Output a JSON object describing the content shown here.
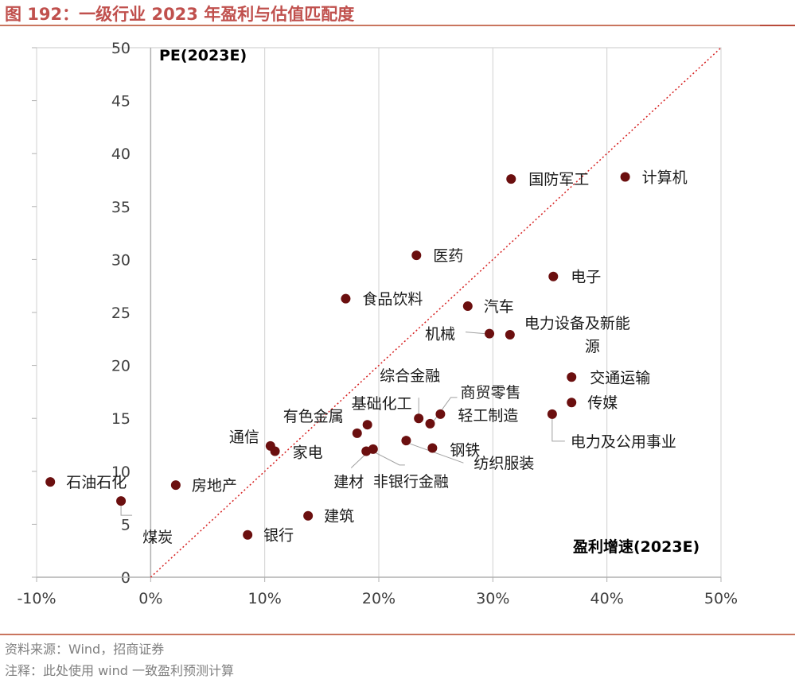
{
  "figure": {
    "title": "图 192：一级行业 2023 年盈利与估值匹配度",
    "source": "资料来源：Wind，招商证券",
    "note": "注释：此处使用 wind 一致盈利预测计算"
  },
  "colors": {
    "title": "#c0504d",
    "point": "#6b0f0f",
    "diagonal": "#d62020",
    "axis": "#b0b0b0",
    "text": "#404040"
  },
  "chart_data": {
    "type": "scatter",
    "title": "",
    "ylabel": "PE(2023E)",
    "xlabel": "盈利增速(2023E)",
    "xlim": [
      -0.1,
      0.5
    ],
    "ylim": [
      0,
      50
    ],
    "x_ticks": [
      -0.1,
      0,
      0.1,
      0.2,
      0.3,
      0.4,
      0.5
    ],
    "x_tick_labels": [
      "-10%",
      "0%",
      "10%",
      "20%",
      "30%",
      "40%",
      "50%"
    ],
    "y_ticks": [
      0,
      5,
      10,
      15,
      20,
      25,
      30,
      35,
      40,
      45,
      50
    ],
    "y_tick_labels": [
      "0",
      "5",
      "10",
      "15",
      "20",
      "25",
      "30",
      "35",
      "40",
      "45",
      "50"
    ],
    "reference_line": {
      "from": [
        0,
        0
      ],
      "to": [
        0.5,
        50
      ],
      "style": "dotted"
    },
    "points": [
      {
        "name": "石油石化",
        "x": -0.088,
        "y": 9.0
      },
      {
        "name": "煤炭",
        "x": -0.026,
        "y": 7.2
      },
      {
        "name": "房地产",
        "x": 0.022,
        "y": 8.7
      },
      {
        "name": "银行",
        "x": 0.085,
        "y": 4.0
      },
      {
        "name": "建筑",
        "x": 0.138,
        "y": 5.8
      },
      {
        "name": "通信",
        "x": 0.105,
        "y": 12.4
      },
      {
        "name": "家电",
        "x": 0.109,
        "y": 11.9
      },
      {
        "name": "有色金属",
        "x": 0.181,
        "y": 13.6
      },
      {
        "name": "基础化工",
        "x": 0.19,
        "y": 14.4
      },
      {
        "name": "建材",
        "x": 0.189,
        "y": 11.9
      },
      {
        "name": "非银行金融",
        "x": 0.195,
        "y": 12.1
      },
      {
        "name": "纺织服装",
        "x": 0.224,
        "y": 12.9
      },
      {
        "name": "综合金融",
        "x": 0.235,
        "y": 15.0
      },
      {
        "name": "商贸零售",
        "x": 0.245,
        "y": 14.5
      },
      {
        "name": "轻工制造",
        "x": 0.254,
        "y": 15.4
      },
      {
        "name": "钢铁",
        "x": 0.247,
        "y": 12.2
      },
      {
        "name": "食品饮料",
        "x": 0.171,
        "y": 26.3
      },
      {
        "name": "医药",
        "x": 0.233,
        "y": 30.4
      },
      {
        "name": "汽车",
        "x": 0.278,
        "y": 25.6
      },
      {
        "name": "机械",
        "x": 0.297,
        "y": 23.0
      },
      {
        "name": "电力设备及新能源",
        "x": 0.315,
        "y": 22.9
      },
      {
        "name": "国防军工",
        "x": 0.316,
        "y": 37.6
      },
      {
        "name": "计算机",
        "x": 0.416,
        "y": 37.8
      },
      {
        "name": "电子",
        "x": 0.353,
        "y": 28.4
      },
      {
        "name": "交通运输",
        "x": 0.369,
        "y": 18.9
      },
      {
        "name": "传媒",
        "x": 0.369,
        "y": 16.5
      },
      {
        "name": "电力及公用事业",
        "x": 0.352,
        "y": 15.4
      }
    ]
  }
}
